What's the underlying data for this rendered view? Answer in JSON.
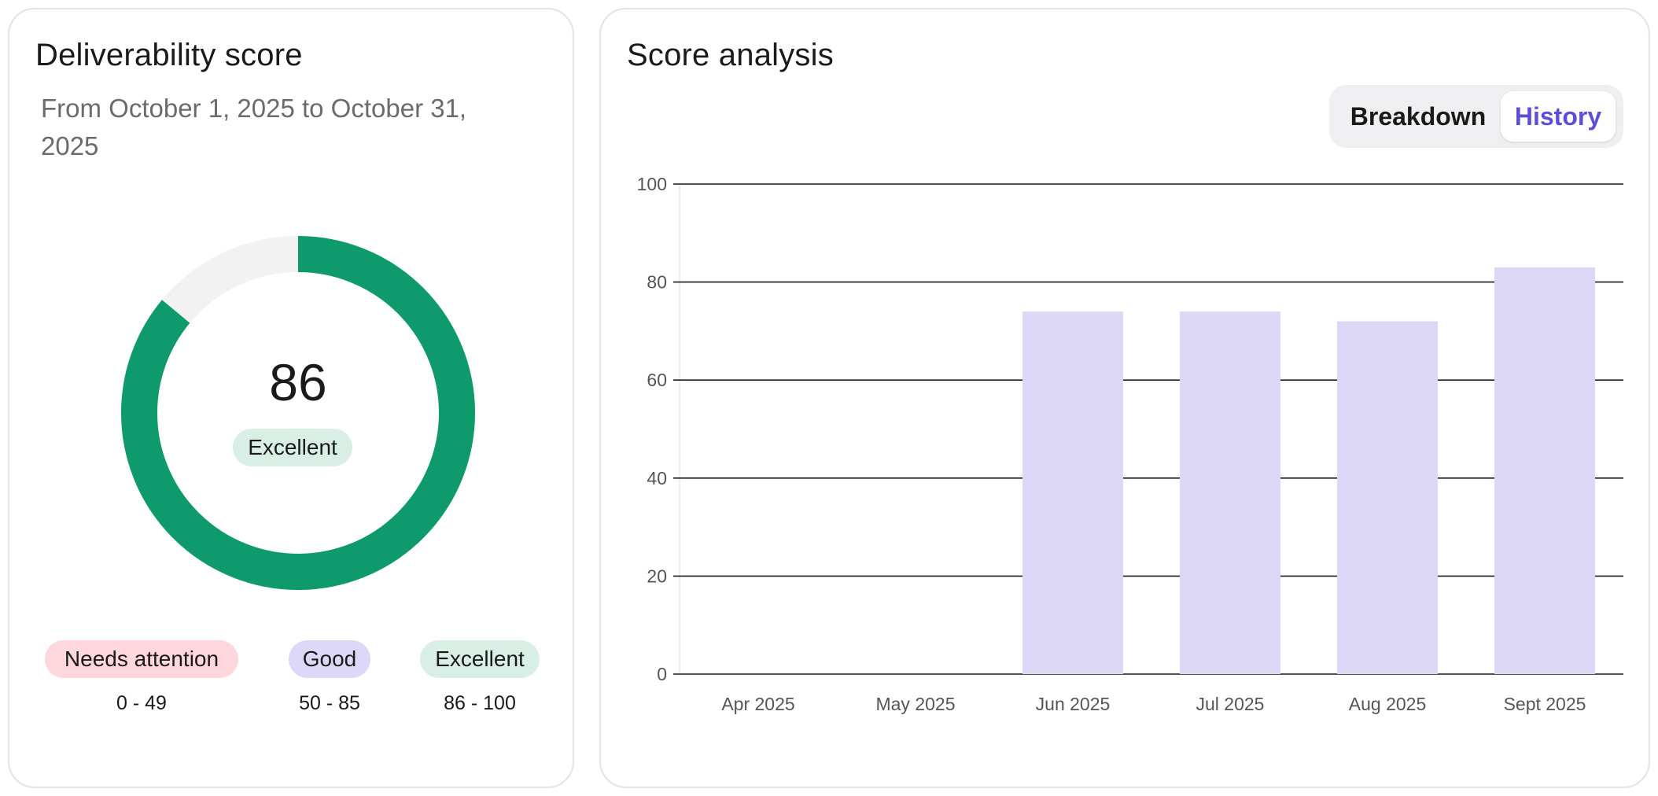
{
  "score_card": {
    "title": "Deliverability score",
    "date_range": "From October 1, 2025 to October 31, 2025",
    "score": "86",
    "score_value": 86,
    "rating": "Excellent",
    "colors": {
      "ring": "#0e9a6c",
      "track": "#f2f2f2",
      "rating_bg": "#d9efe6"
    },
    "legend": [
      {
        "label": "Needs attention",
        "range": "0 - 49",
        "color": "#fdd7dc"
      },
      {
        "label": "Good",
        "range": "50 - 85",
        "color": "#ddd8f7"
      },
      {
        "label": "Excellent",
        "range": "86 - 100",
        "color": "#d9efe6"
      }
    ]
  },
  "analysis_card": {
    "title": "Score analysis",
    "toggle": {
      "breakdown_label": "Breakdown",
      "history_label": "History",
      "selected": "History"
    }
  },
  "chart_data": {
    "type": "bar",
    "categories": [
      "Apr 2025",
      "May 2025",
      "Jun 2025",
      "Jul 2025",
      "Aug 2025",
      "Sept 2025"
    ],
    "values": [
      0,
      0,
      74,
      74,
      72,
      83
    ],
    "ylim": [
      0,
      100
    ],
    "yticks": [
      "0",
      "20",
      "40",
      "60",
      "80",
      "100"
    ],
    "grid": true,
    "bar_color": "#dcd8f6"
  }
}
